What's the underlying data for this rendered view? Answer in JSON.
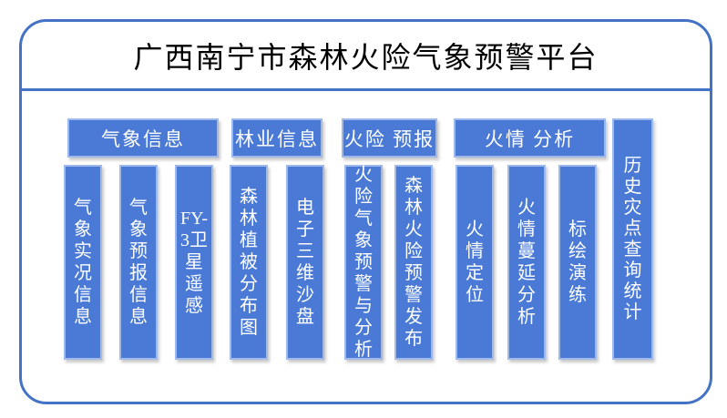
{
  "title": "广西南宁市森林火险气象预警平台",
  "colors": {
    "frame_border": "#4472C4",
    "node_fill": "#4A7AD6",
    "node_border": "#9FB9EA",
    "node_text": "#FFFFFF",
    "title_text": "#000000",
    "shadow": "rgba(120,120,120,0.40)"
  },
  "groups": [
    {
      "label": "气象信息",
      "items": [
        "气象实况信息",
        "气象预报信息",
        "FY-3卫星遥感"
      ]
    },
    {
      "label": "林业信息",
      "items": [
        "森林植被分布图",
        "电子三维沙盘"
      ]
    },
    {
      "label": "火险 预报",
      "items": [
        "火险气象预警与分析",
        "森林火险预警发布"
      ]
    },
    {
      "label": "火情 分析",
      "items": [
        "火情定位",
        "火情蔓延分析",
        "标绘演练"
      ]
    }
  ],
  "standalone": {
    "label": "历史灾点查询统计"
  }
}
